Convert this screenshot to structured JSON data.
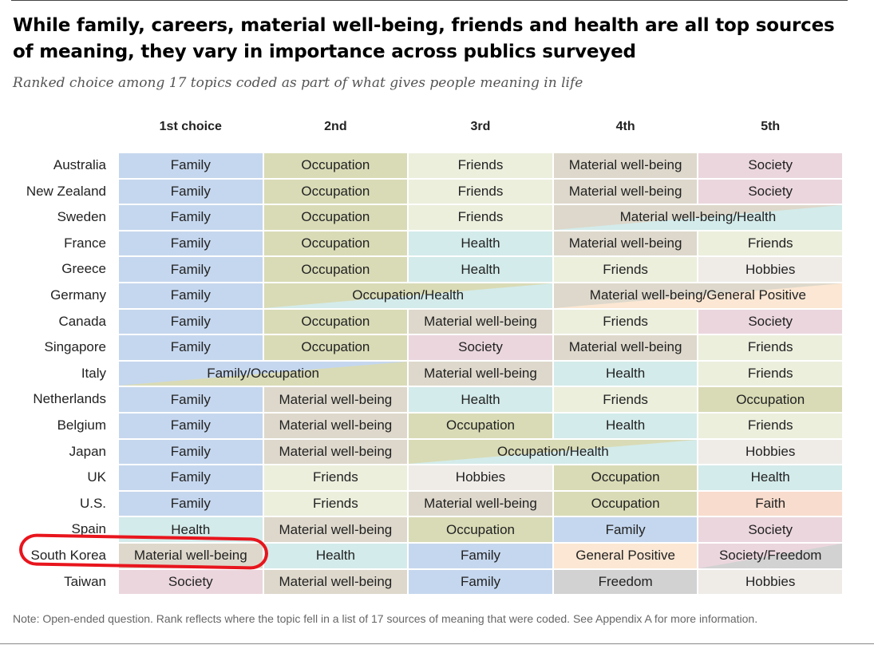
{
  "chart_data": {
    "type": "table",
    "title": "While family, careers, material well-being, friends and health are all top sources of meaning, they vary in importance across publics surveyed",
    "subtitle": "Ranked choice among 17 topics coded as part of what gives people meaning in life",
    "columns": [
      "1st choice",
      "2nd",
      "3rd",
      "4th",
      "5th"
    ],
    "rows": [
      {
        "country": "Australia",
        "cells": [
          {
            "label": "Family",
            "span": 1,
            "fill": "family"
          },
          {
            "label": "Occupation",
            "span": 1,
            "fill": "occupation"
          },
          {
            "label": "Friends",
            "span": 1,
            "fill": "friends"
          },
          {
            "label": "Material well-being",
            "span": 1,
            "fill": "material"
          },
          {
            "label": "Society",
            "span": 1,
            "fill": "society"
          }
        ]
      },
      {
        "country": "New Zealand",
        "cells": [
          {
            "label": "Family",
            "span": 1,
            "fill": "family"
          },
          {
            "label": "Occupation",
            "span": 1,
            "fill": "occupation"
          },
          {
            "label": "Friends",
            "span": 1,
            "fill": "friends"
          },
          {
            "label": "Material well-being",
            "span": 1,
            "fill": "material"
          },
          {
            "label": "Society",
            "span": 1,
            "fill": "society"
          }
        ]
      },
      {
        "country": "Sweden",
        "cells": [
          {
            "label": "Family",
            "span": 1,
            "fill": "family"
          },
          {
            "label": "Occupation",
            "span": 1,
            "fill": "occupation"
          },
          {
            "label": "Friends",
            "span": 1,
            "fill": "friends"
          },
          {
            "label": "Material well-being/Health",
            "span": 2,
            "fill": "material",
            "fill2": "health"
          }
        ]
      },
      {
        "country": "France",
        "cells": [
          {
            "label": "Family",
            "span": 1,
            "fill": "family"
          },
          {
            "label": "Occupation",
            "span": 1,
            "fill": "occupation"
          },
          {
            "label": "Health",
            "span": 1,
            "fill": "health"
          },
          {
            "label": "Material well-being",
            "span": 1,
            "fill": "material"
          },
          {
            "label": "Friends",
            "span": 1,
            "fill": "friends"
          }
        ]
      },
      {
        "country": "Greece",
        "cells": [
          {
            "label": "Family",
            "span": 1,
            "fill": "family"
          },
          {
            "label": "Occupation",
            "span": 1,
            "fill": "occupation"
          },
          {
            "label": "Health",
            "span": 1,
            "fill": "health"
          },
          {
            "label": "Friends",
            "span": 1,
            "fill": "friends"
          },
          {
            "label": "Hobbies",
            "span": 1,
            "fill": "hobbies"
          }
        ]
      },
      {
        "country": "Germany",
        "cells": [
          {
            "label": "Family",
            "span": 1,
            "fill": "family"
          },
          {
            "label": "Occupation/Health",
            "span": 2,
            "fill": "occupation",
            "fill2": "health"
          },
          {
            "label": "Material well-being/General Positive",
            "span": 2,
            "fill": "material",
            "fill2": "genpos"
          }
        ]
      },
      {
        "country": "Canada",
        "cells": [
          {
            "label": "Family",
            "span": 1,
            "fill": "family"
          },
          {
            "label": "Occupation",
            "span": 1,
            "fill": "occupation"
          },
          {
            "label": "Material well-being",
            "span": 1,
            "fill": "material"
          },
          {
            "label": "Friends",
            "span": 1,
            "fill": "friends"
          },
          {
            "label": "Society",
            "span": 1,
            "fill": "society"
          }
        ]
      },
      {
        "country": "Singapore",
        "cells": [
          {
            "label": "Family",
            "span": 1,
            "fill": "family"
          },
          {
            "label": "Occupation",
            "span": 1,
            "fill": "occupation"
          },
          {
            "label": "Society",
            "span": 1,
            "fill": "society"
          },
          {
            "label": "Material well-being",
            "span": 1,
            "fill": "material"
          },
          {
            "label": "Friends",
            "span": 1,
            "fill": "friends"
          }
        ]
      },
      {
        "country": "Italy",
        "cells": [
          {
            "label": "Family/Occupation",
            "span": 2,
            "fill": "family",
            "fill2": "occupation"
          },
          {
            "label": "Material well-being",
            "span": 1,
            "fill": "material"
          },
          {
            "label": "Health",
            "span": 1,
            "fill": "health"
          },
          {
            "label": "Friends",
            "span": 1,
            "fill": "friends"
          }
        ]
      },
      {
        "country": "Netherlands",
        "cells": [
          {
            "label": "Family",
            "span": 1,
            "fill": "family"
          },
          {
            "label": "Material well-being",
            "span": 1,
            "fill": "material"
          },
          {
            "label": "Health",
            "span": 1,
            "fill": "health"
          },
          {
            "label": "Friends",
            "span": 1,
            "fill": "friends"
          },
          {
            "label": "Occupation",
            "span": 1,
            "fill": "occupation"
          }
        ]
      },
      {
        "country": "Belgium",
        "cells": [
          {
            "label": "Family",
            "span": 1,
            "fill": "family"
          },
          {
            "label": "Material well-being",
            "span": 1,
            "fill": "material"
          },
          {
            "label": "Occupation",
            "span": 1,
            "fill": "occupation"
          },
          {
            "label": "Health",
            "span": 1,
            "fill": "health"
          },
          {
            "label": "Friends",
            "span": 1,
            "fill": "friends"
          }
        ]
      },
      {
        "country": "Japan",
        "cells": [
          {
            "label": "Family",
            "span": 1,
            "fill": "family"
          },
          {
            "label": "Material well-being",
            "span": 1,
            "fill": "material"
          },
          {
            "label": "Occupation/Health",
            "span": 2,
            "fill": "occupation",
            "fill2": "health"
          },
          {
            "label": "Hobbies",
            "span": 1,
            "fill": "hobbies"
          }
        ]
      },
      {
        "country": "UK",
        "cells": [
          {
            "label": "Family",
            "span": 1,
            "fill": "family"
          },
          {
            "label": "Friends",
            "span": 1,
            "fill": "friends"
          },
          {
            "label": "Hobbies",
            "span": 1,
            "fill": "hobbies"
          },
          {
            "label": "Occupation",
            "span": 1,
            "fill": "occupation"
          },
          {
            "label": "Health",
            "span": 1,
            "fill": "health"
          }
        ]
      },
      {
        "country": "U.S.",
        "cells": [
          {
            "label": "Family",
            "span": 1,
            "fill": "family"
          },
          {
            "label": "Friends",
            "span": 1,
            "fill": "friends"
          },
          {
            "label": "Material well-being",
            "span": 1,
            "fill": "material"
          },
          {
            "label": "Occupation",
            "span": 1,
            "fill": "occupation"
          },
          {
            "label": "Faith",
            "span": 1,
            "fill": "faith"
          }
        ]
      },
      {
        "country": "Spain",
        "cells": [
          {
            "label": "Health",
            "span": 1,
            "fill": "health"
          },
          {
            "label": "Material well-being",
            "span": 1,
            "fill": "material"
          },
          {
            "label": "Occupation",
            "span": 1,
            "fill": "occupation"
          },
          {
            "label": "Family",
            "span": 1,
            "fill": "family"
          },
          {
            "label": "Society",
            "span": 1,
            "fill": "society"
          }
        ]
      },
      {
        "country": "South Korea",
        "cells": [
          {
            "label": "Material well-being",
            "span": 1,
            "fill": "material"
          },
          {
            "label": "Health",
            "span": 1,
            "fill": "health"
          },
          {
            "label": "Family",
            "span": 1,
            "fill": "family"
          },
          {
            "label": "General Positive",
            "span": 1,
            "fill": "genpos"
          },
          {
            "label": "Society/Freedom",
            "span": 1,
            "fill": "society",
            "fill2": "freedom"
          }
        ]
      },
      {
        "country": "Taiwan",
        "cells": [
          {
            "label": "Society",
            "span": 1,
            "fill": "society"
          },
          {
            "label": "Material well-being",
            "span": 1,
            "fill": "material"
          },
          {
            "label": "Family",
            "span": 1,
            "fill": "family"
          },
          {
            "label": "Freedom",
            "span": 1,
            "fill": "freedom"
          },
          {
            "label": "Hobbies",
            "span": 1,
            "fill": "hobbies"
          }
        ]
      }
    ],
    "colors": {
      "family": "#c5d7ee",
      "occupation": "#d9dbb6",
      "friends": "#ebefdc",
      "material": "#ddd8cb",
      "society": "#ebd6de",
      "health": "#d3ebea",
      "hobbies": "#efece8",
      "genpos": "#fbe7d3",
      "faith": "#f8dccd",
      "freedom": "#d2d2d2"
    },
    "highlight_country": "South Korea"
  },
  "note": "Note: Open-ended question. Rank reflects where the topic fell in a list of 17 sources of meaning that were coded. See Appendix A for more information."
}
